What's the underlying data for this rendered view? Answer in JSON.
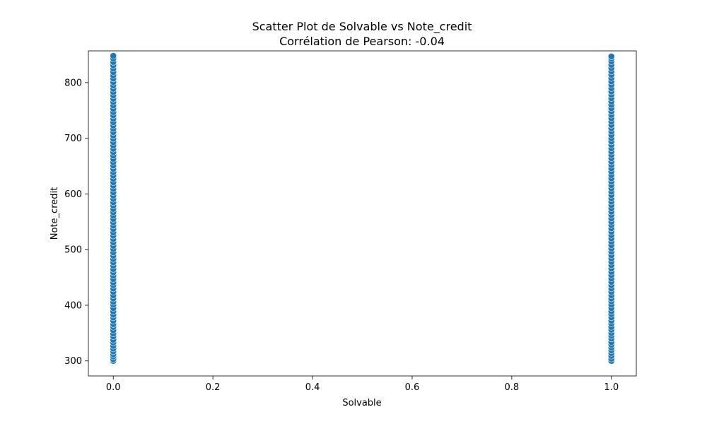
{
  "chart_data": {
    "type": "scatter",
    "title": "Scatter Plot de Solvable vs Note_credit",
    "subtitle": "Corrélation de Pearson: -0.04",
    "xlabel": "Solvable",
    "ylabel": "Note_credit",
    "xlim": [
      -0.05,
      1.05
    ],
    "ylim": [
      273,
      857
    ],
    "x_ticks": [
      0.0,
      0.2,
      0.4,
      0.6,
      0.8,
      1.0
    ],
    "x_tick_labels": [
      "0.0",
      "0.2",
      "0.4",
      "0.6",
      "0.8",
      "1.0"
    ],
    "y_ticks": [
      300,
      400,
      500,
      600,
      700,
      800
    ],
    "y_tick_labels": [
      "300",
      "400",
      "500",
      "600",
      "700",
      "800"
    ],
    "grid": false,
    "marker_color": "#1f77b4",
    "marker_edge_color": "#ffffff",
    "series": [
      {
        "x": 0,
        "y": [
          300,
          303,
          308,
          312,
          317,
          322,
          327,
          333,
          338,
          344,
          349,
          355,
          361,
          366,
          372,
          378,
          383,
          389,
          395,
          401,
          406,
          412,
          418,
          424,
          430,
          436,
          441,
          447,
          453,
          459,
          465,
          471,
          477,
          483,
          489,
          495,
          501,
          507,
          513,
          519,
          525,
          531,
          537,
          543,
          549,
          555,
          561,
          567,
          573,
          579,
          585,
          591,
          597,
          603,
          609,
          615,
          621,
          627,
          633,
          639,
          645,
          651,
          657,
          663,
          669,
          675,
          681,
          687,
          693,
          699,
          705,
          711,
          717,
          723,
          729,
          735,
          741,
          747,
          753,
          759,
          765,
          771,
          777,
          783,
          789,
          795,
          801,
          807,
          813,
          819,
          825,
          831,
          837,
          843,
          848
        ]
      },
      {
        "x": 1,
        "y": [
          300,
          304,
          309,
          314,
          319,
          324,
          329,
          334,
          340,
          345,
          350,
          356,
          361,
          367,
          372,
          378,
          384,
          389,
          395,
          401,
          407,
          412,
          418,
          424,
          430,
          436,
          442,
          448,
          454,
          460,
          466,
          472,
          478,
          484,
          490,
          496,
          502,
          508,
          514,
          520,
          526,
          532,
          538,
          544,
          550,
          556,
          562,
          568,
          574,
          580,
          586,
          592,
          598,
          604,
          610,
          616,
          622,
          628,
          634,
          640,
          646,
          652,
          658,
          664,
          670,
          676,
          682,
          688,
          694,
          700,
          706,
          712,
          718,
          724,
          730,
          736,
          742,
          748,
          754,
          760,
          766,
          772,
          778,
          784,
          790,
          796,
          802,
          808,
          814,
          820,
          826,
          832,
          838,
          843,
          847
        ]
      }
    ]
  }
}
